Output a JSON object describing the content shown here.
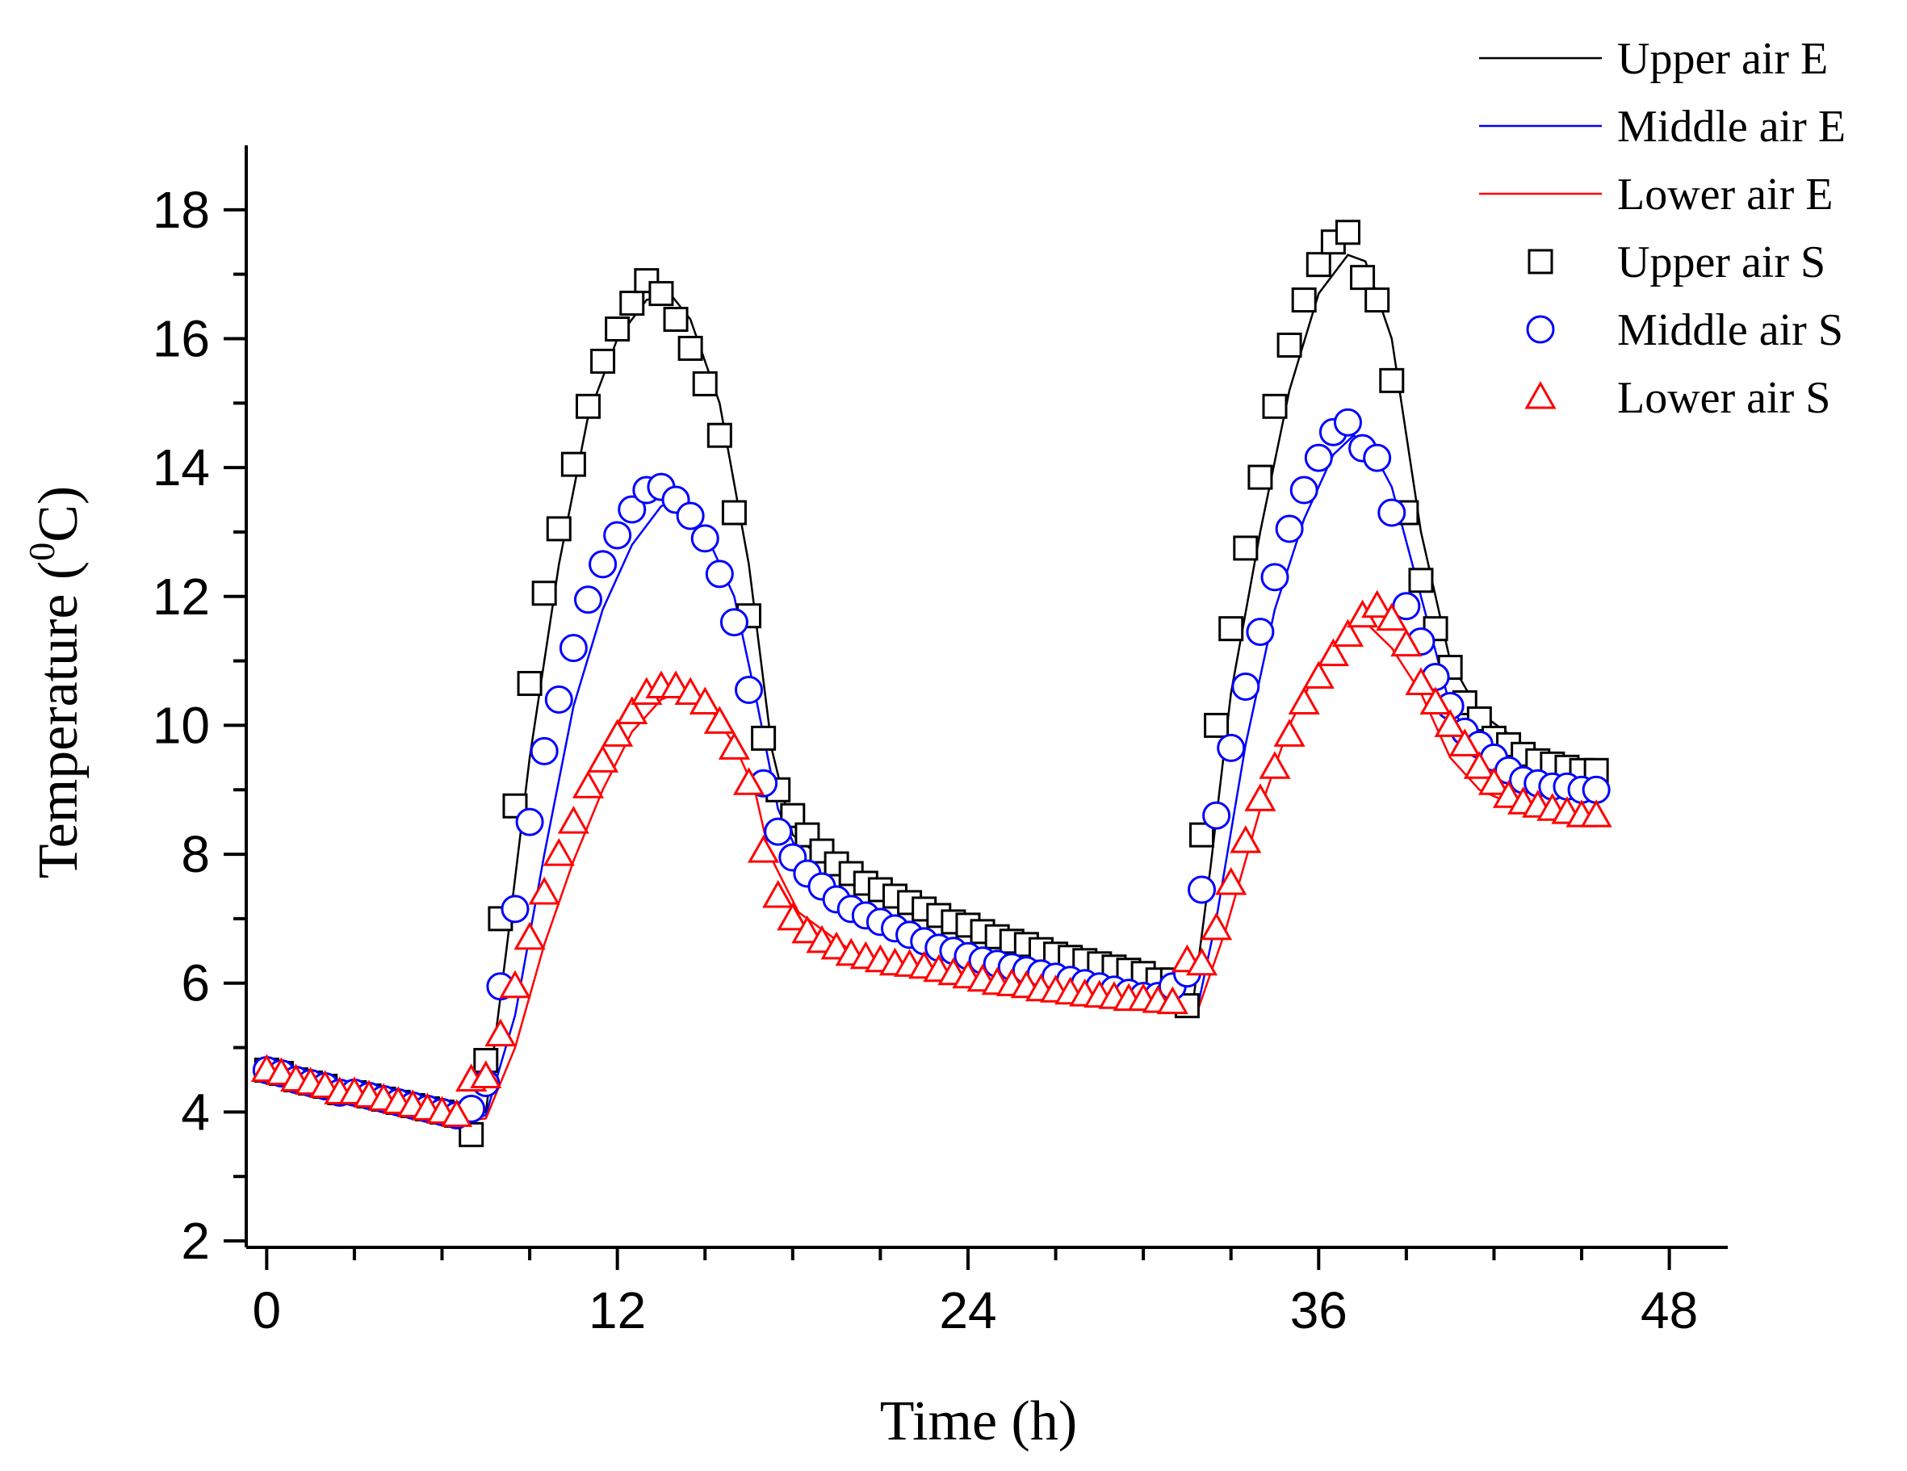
{
  "chart_data": {
    "type": "line",
    "title": "",
    "xlabel": "Time (h)",
    "ylabel_main": "Temperature (",
    "ylabel_sup": "0",
    "ylabel_end": "C)",
    "xlim": [
      -0.7,
      50
    ],
    "ylim": [
      1.9,
      19
    ],
    "xticks": [
      0,
      12,
      24,
      36,
      48
    ],
    "xtick_labels": [
      "0",
      "12",
      "24",
      "36",
      "48"
    ],
    "xminor_step": 3,
    "yticks": [
      2,
      4,
      6,
      8,
      10,
      12,
      14,
      16,
      18
    ],
    "ytick_labels": [
      "2",
      "4",
      "6",
      "8",
      "10",
      "12",
      "14",
      "16",
      "18"
    ],
    "yminor_step": 1,
    "grid": false,
    "legend_position": "top-right",
    "lines": [
      {
        "name": "Upper air E",
        "color": "#000000",
        "points": [
          [
            0,
            4.6
          ],
          [
            3,
            4.2
          ],
          [
            6.5,
            3.85
          ],
          [
            7.5,
            4.0
          ],
          [
            8.2,
            6.5
          ],
          [
            9,
            9.5
          ],
          [
            10,
            12.5
          ],
          [
            11,
            14.8
          ],
          [
            12,
            16.0
          ],
          [
            13,
            16.6
          ],
          [
            13.8,
            16.7
          ],
          [
            14.5,
            16.3
          ],
          [
            15.5,
            15.0
          ],
          [
            16.5,
            12.5
          ],
          [
            17.3,
            9.6
          ],
          [
            18,
            8.3
          ],
          [
            20,
            7.6
          ],
          [
            22,
            7.2
          ],
          [
            25,
            6.7
          ],
          [
            28,
            6.35
          ],
          [
            31,
            5.95
          ],
          [
            31.7,
            5.7
          ],
          [
            32.3,
            7.8
          ],
          [
            33,
            10.5
          ],
          [
            34,
            13.0
          ],
          [
            35,
            15.2
          ],
          [
            36,
            16.7
          ],
          [
            37,
            17.3
          ],
          [
            37.6,
            17.2
          ],
          [
            38.5,
            16.0
          ],
          [
            39.5,
            13.0
          ],
          [
            40.5,
            11.0
          ],
          [
            41.5,
            10.2
          ],
          [
            43,
            9.7
          ],
          [
            45.5,
            9.2
          ]
        ]
      },
      {
        "name": "Middle air E",
        "color": "#0000ff",
        "points": [
          [
            0,
            4.6
          ],
          [
            3,
            4.2
          ],
          [
            6.5,
            3.85
          ],
          [
            7.5,
            3.95
          ],
          [
            8.5,
            5.5
          ],
          [
            9.5,
            8.0
          ],
          [
            10.5,
            10.3
          ],
          [
            11.5,
            11.8
          ],
          [
            12.5,
            12.8
          ],
          [
            13.5,
            13.4
          ],
          [
            14,
            13.5
          ],
          [
            15,
            13.0
          ],
          [
            16,
            12.0
          ],
          [
            16.8,
            10.3
          ],
          [
            17.5,
            8.7
          ],
          [
            18.5,
            7.7
          ],
          [
            20,
            7.1
          ],
          [
            22,
            6.8
          ],
          [
            25,
            6.4
          ],
          [
            28,
            6.0
          ],
          [
            31,
            5.7
          ],
          [
            31.8,
            5.5
          ],
          [
            32.5,
            7.0
          ],
          [
            33.5,
            9.7
          ],
          [
            34.5,
            11.8
          ],
          [
            35.5,
            13.2
          ],
          [
            36.5,
            14.2
          ],
          [
            37.2,
            14.5
          ],
          [
            37.8,
            14.3
          ],
          [
            38.5,
            13.7
          ],
          [
            39.5,
            12.0
          ],
          [
            40.5,
            10.3
          ],
          [
            41.5,
            9.6
          ],
          [
            43,
            9.2
          ],
          [
            45.5,
            8.9
          ]
        ]
      },
      {
        "name": "Lower air E",
        "color": "#ff0000",
        "points": [
          [
            0,
            4.6
          ],
          [
            3,
            4.2
          ],
          [
            6.5,
            3.85
          ],
          [
            7.5,
            3.9
          ],
          [
            8.5,
            5.0
          ],
          [
            9.5,
            6.6
          ],
          [
            10.5,
            7.9
          ],
          [
            11.5,
            9.0
          ],
          [
            12.5,
            9.9
          ],
          [
            13.5,
            10.4
          ],
          [
            14.3,
            10.55
          ],
          [
            15,
            10.4
          ],
          [
            16,
            9.7
          ],
          [
            16.7,
            9.0
          ],
          [
            17.2,
            8.0
          ],
          [
            18.2,
            7.1
          ],
          [
            20,
            6.5
          ],
          [
            22,
            6.2
          ],
          [
            25,
            6.0
          ],
          [
            28,
            5.8
          ],
          [
            31,
            5.55
          ],
          [
            31.8,
            5.5
          ],
          [
            32.8,
            6.8
          ],
          [
            34,
            8.7
          ],
          [
            35,
            10.0
          ],
          [
            36,
            10.9
          ],
          [
            37,
            11.5
          ],
          [
            37.6,
            11.6
          ],
          [
            38.5,
            11.2
          ],
          [
            39.5,
            10.5
          ],
          [
            40.5,
            9.5
          ],
          [
            41.5,
            9.0
          ],
          [
            43,
            8.7
          ],
          [
            45.5,
            8.5
          ]
        ]
      }
    ],
    "scatter": [
      {
        "name": "Upper air S",
        "color": "#000000",
        "marker": "square",
        "x": [
          0,
          0.5,
          1,
          1.5,
          2,
          2.5,
          3,
          3.5,
          4,
          4.5,
          5,
          5.5,
          6,
          6.5,
          7,
          7.5,
          8,
          8.5,
          9,
          9.5,
          10,
          10.5,
          11,
          11.5,
          12,
          12.5,
          13,
          13.5,
          14,
          14.5,
          15,
          15.5,
          16,
          16.5,
          17,
          17.5,
          18,
          18.5,
          19,
          19.5,
          20,
          20.5,
          21,
          21.5,
          22,
          22.5,
          23,
          23.5,
          24,
          24.5,
          25,
          25.5,
          26,
          26.5,
          27,
          27.5,
          28,
          28.5,
          29,
          29.5,
          30,
          30.5,
          31,
          31.5,
          32,
          32.5,
          33,
          33.5,
          34,
          34.5,
          35,
          35.5,
          36,
          36.5,
          37,
          37.5,
          38,
          38.5,
          39,
          39.5,
          40,
          40.5,
          41,
          41.5,
          42,
          42.5,
          43,
          43.5,
          44,
          44.5,
          45,
          45.5
        ],
        "y": [
          4.65,
          4.6,
          4.5,
          4.45,
          4.4,
          4.3,
          4.3,
          4.25,
          4.2,
          4.15,
          4.1,
          4.05,
          4.0,
          3.95,
          3.65,
          4.8,
          7.0,
          8.75,
          10.65,
          12.05,
          13.05,
          14.05,
          14.95,
          15.65,
          16.15,
          16.55,
          16.9,
          16.7,
          16.3,
          15.85,
          15.3,
          14.5,
          13.3,
          11.7,
          9.8,
          9.0,
          8.6,
          8.3,
          8.05,
          7.85,
          7.7,
          7.55,
          7.45,
          7.35,
          7.25,
          7.15,
          7.05,
          6.95,
          6.9,
          6.8,
          6.72,
          6.65,
          6.6,
          6.52,
          6.45,
          6.4,
          6.35,
          6.3,
          6.25,
          6.2,
          6.15,
          6.05,
          6.05,
          5.65,
          8.3,
          10.0,
          11.5,
          12.75,
          13.85,
          14.95,
          15.9,
          16.6,
          17.15,
          17.5,
          17.65,
          16.95,
          16.6,
          15.35,
          13.3,
          12.25,
          11.5,
          10.9,
          10.35,
          10.1,
          9.8,
          9.7,
          9.55,
          9.45,
          9.4,
          9.35,
          9.3,
          9.3
        ]
      },
      {
        "name": "Middle air S",
        "color": "#0000ff",
        "marker": "circle",
        "x": [
          0,
          0.5,
          1,
          1.5,
          2,
          2.5,
          3,
          3.5,
          4,
          4.5,
          5,
          5.5,
          6,
          6.5,
          7,
          7.5,
          8,
          8.5,
          9,
          9.5,
          10,
          10.5,
          11,
          11.5,
          12,
          12.5,
          13,
          13.5,
          14,
          14.5,
          15,
          15.5,
          16,
          16.5,
          17,
          17.5,
          18,
          18.5,
          19,
          19.5,
          20,
          20.5,
          21,
          21.5,
          22,
          22.5,
          23,
          23.5,
          24,
          24.5,
          25,
          25.5,
          26,
          26.5,
          27,
          27.5,
          28,
          28.5,
          29,
          29.5,
          30,
          30.5,
          31,
          31.5,
          32,
          32.5,
          33,
          33.5,
          34,
          34.5,
          35,
          35.5,
          36,
          36.5,
          37,
          37.5,
          38,
          38.5,
          39,
          39.5,
          40,
          40.5,
          41,
          41.5,
          42,
          42.5,
          43,
          43.5,
          44,
          44.5,
          45,
          45.5
        ],
        "y": [
          4.65,
          4.6,
          4.5,
          4.45,
          4.4,
          4.3,
          4.3,
          4.25,
          4.2,
          4.15,
          4.1,
          4.05,
          4.0,
          3.95,
          4.05,
          4.45,
          5.95,
          7.15,
          8.5,
          9.6,
          10.4,
          11.2,
          11.95,
          12.5,
          12.95,
          13.35,
          13.65,
          13.7,
          13.5,
          13.25,
          12.9,
          12.35,
          11.6,
          10.55,
          9.1,
          8.35,
          7.95,
          7.7,
          7.5,
          7.3,
          7.15,
          7.05,
          6.95,
          6.85,
          6.75,
          6.65,
          6.55,
          6.5,
          6.42,
          6.35,
          6.3,
          6.25,
          6.2,
          6.15,
          6.1,
          6.05,
          6.0,
          5.95,
          5.9,
          5.85,
          5.8,
          5.8,
          5.95,
          6.15,
          7.45,
          8.6,
          9.65,
          10.6,
          11.45,
          12.3,
          13.05,
          13.65,
          14.15,
          14.55,
          14.7,
          14.3,
          14.15,
          13.3,
          11.85,
          11.3,
          10.75,
          10.3,
          9.9,
          9.7,
          9.5,
          9.3,
          9.15,
          9.1,
          9.05,
          9.05,
          9.0,
          9.0
        ]
      },
      {
        "name": "Lower air S",
        "color": "#ff0000",
        "marker": "triangle",
        "x": [
          0,
          0.5,
          1,
          1.5,
          2,
          2.5,
          3,
          3.5,
          4,
          4.5,
          5,
          5.5,
          6,
          6.5,
          7,
          7.5,
          8,
          8.5,
          9,
          9.5,
          10,
          10.5,
          11,
          11.5,
          12,
          12.5,
          13,
          13.5,
          14,
          14.5,
          15,
          15.5,
          16,
          16.5,
          17,
          17.5,
          18,
          18.5,
          19,
          19.5,
          20,
          20.5,
          21,
          21.5,
          22,
          22.5,
          23,
          23.5,
          24,
          24.5,
          25,
          25.5,
          26,
          26.5,
          27,
          27.5,
          28,
          28.5,
          29,
          29.5,
          30,
          30.5,
          31,
          31.5,
          32,
          32.5,
          33,
          33.5,
          34,
          34.5,
          35,
          35.5,
          36,
          36.5,
          37,
          37.5,
          38,
          38.5,
          39,
          39.5,
          40,
          40.5,
          41,
          41.5,
          42,
          42.5,
          43,
          43.5,
          44,
          44.5,
          45,
          45.5
        ],
        "y": [
          4.65,
          4.6,
          4.5,
          4.45,
          4.4,
          4.3,
          4.3,
          4.25,
          4.2,
          4.15,
          4.1,
          4.05,
          4.0,
          3.95,
          4.5,
          4.55,
          5.2,
          5.95,
          6.7,
          7.4,
          8.0,
          8.5,
          9.05,
          9.45,
          9.85,
          10.2,
          10.5,
          10.6,
          10.6,
          10.5,
          10.35,
          10.05,
          9.65,
          9.1,
          8.05,
          7.35,
          7.0,
          6.8,
          6.65,
          6.55,
          6.45,
          6.4,
          6.35,
          6.3,
          6.28,
          6.25,
          6.2,
          6.15,
          6.1,
          6.05,
          6.0,
          5.98,
          5.95,
          5.9,
          5.88,
          5.85,
          5.82,
          5.8,
          5.78,
          5.75,
          5.75,
          5.72,
          5.7,
          6.35,
          6.3,
          6.85,
          7.55,
          8.2,
          8.85,
          9.35,
          9.85,
          10.35,
          10.75,
          11.1,
          11.4,
          11.7,
          11.85,
          11.65,
          11.25,
          10.65,
          10.35,
          10.0,
          9.7,
          9.35,
          9.1,
          8.9,
          8.8,
          8.75,
          8.7,
          8.65,
          8.6,
          8.6
        ]
      }
    ]
  }
}
